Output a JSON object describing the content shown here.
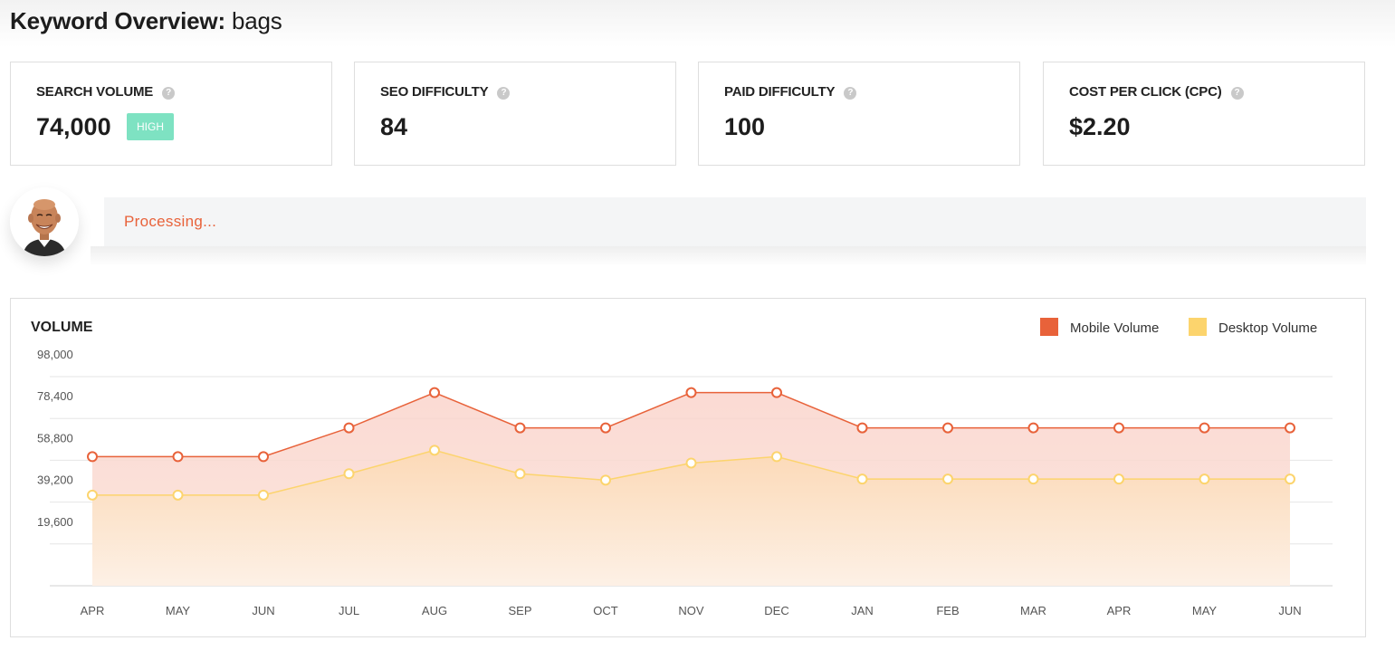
{
  "page": {
    "title_prefix": "Keyword Overview:",
    "keyword": "bags"
  },
  "metrics": [
    {
      "label": "SEARCH VOLUME",
      "value": "74,000",
      "badge": "HIGH"
    },
    {
      "label": "SEO DIFFICULTY",
      "value": "84"
    },
    {
      "label": "PAID DIFFICULTY",
      "value": "100"
    },
    {
      "label": "COST PER CLICK (CPC)",
      "value": "$2.20"
    }
  ],
  "help_icon_glyph": "?",
  "status": {
    "text": "Processing..."
  },
  "colors": {
    "accent": "#e8623a",
    "mobile": "#e8623a",
    "desktop": "#fcd46d",
    "badge": "#7ee2c2"
  },
  "chart_data": {
    "type": "area",
    "title": "VOLUME",
    "categories": [
      "APR",
      "MAY",
      "JUN",
      "JUL",
      "AUG",
      "SEP",
      "OCT",
      "NOV",
      "DEC",
      "JAN",
      "FEB",
      "MAR",
      "APR",
      "MAY",
      "JUN"
    ],
    "series": [
      {
        "name": "Mobile Volume",
        "values": [
          60500,
          60500,
          60500,
          74000,
          90500,
          74000,
          74000,
          90500,
          90500,
          74000,
          74000,
          74000,
          74000,
          74000,
          74000
        ]
      },
      {
        "name": "Desktop Volume",
        "values": [
          42500,
          42500,
          42500,
          52500,
          63500,
          52500,
          49500,
          57500,
          60500,
          50000,
          50000,
          50000,
          50000,
          50000,
          50000
        ]
      }
    ],
    "yticks": [
      "19,600",
      "39,200",
      "58,800",
      "78,400",
      "98,000"
    ],
    "ylim": [
      0,
      98000
    ],
    "grid": true,
    "legend_position": "top-right"
  }
}
